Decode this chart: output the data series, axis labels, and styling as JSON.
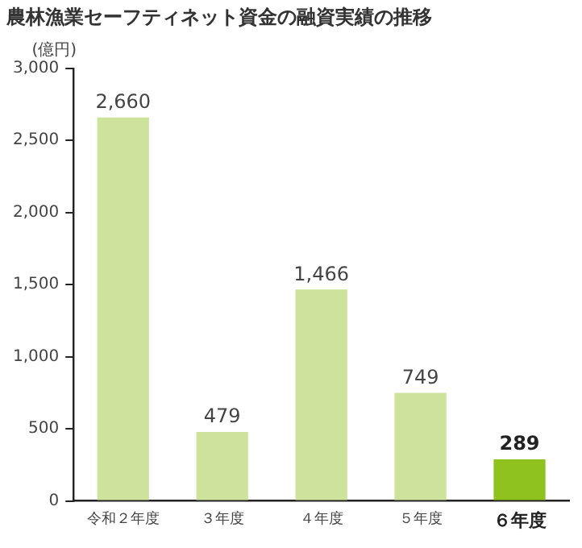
{
  "chart_data": {
    "type": "bar",
    "title": "農林漁業セーフティネット資金の融資実績の推移",
    "ylabel": "(億円)",
    "categories": [
      "令和２年度",
      "３年度",
      "４年度",
      "５年度",
      "６年度"
    ],
    "values": [
      2660,
      479,
      1466,
      749,
      289
    ],
    "value_labels": [
      "2,660",
      "479",
      "1,466",
      "749",
      "289"
    ],
    "colors": [
      "#cde29a",
      "#cde29a",
      "#cde29a",
      "#cde29a",
      "#8fc21f"
    ],
    "ylim": [
      0,
      3000
    ],
    "yticks": [
      0,
      500,
      {
        "value": 1000,
        "label": "1,000"
      },
      {
        "value": 1500,
        "label": "1,500"
      },
      {
        "value": 2000,
        "label": "2,000"
      },
      {
        "value": 2500,
        "label": "2,500"
      },
      {
        "value": 3000,
        "label": "3,000"
      }
    ],
    "grid": false,
    "legend": false
  }
}
